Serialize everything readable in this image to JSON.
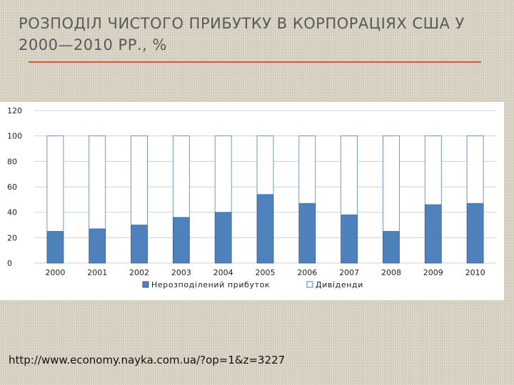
{
  "slide": {
    "title": "РОЗПОДІЛ ЧИСТОГО ПРИБУТКУ В КОРПОРАЦІЯХ США У 2000—2010 РР., %",
    "source": "http://www.economy.nayka.com.ua/?op=1&z=3227"
  },
  "colors": {
    "retained": "#4f81bd",
    "retained_stroke": "#385d8a",
    "dividends": "#ffffff",
    "dividends_stroke": "#4f81bd",
    "gridline": "#d0d0d0",
    "title_rule": "#d3573a"
  },
  "chart_data": {
    "type": "bar",
    "stacked": true,
    "categories": [
      "2000",
      "2001",
      "2002",
      "2003",
      "2004",
      "2005",
      "2006",
      "2007",
      "2008",
      "2009",
      "2010"
    ],
    "series": [
      {
        "name": "Нерозподілений прибуток",
        "values": [
          25,
          27,
          30,
          36,
          40,
          54,
          47,
          38,
          25,
          46,
          47
        ]
      },
      {
        "name": "Дивіденди",
        "values": [
          75,
          73,
          70,
          64,
          60,
          46,
          53,
          62,
          75,
          54,
          53
        ]
      }
    ],
    "yticks": [
      "0",
      "20",
      "40",
      "60",
      "80",
      "100",
      "120"
    ],
    "ylim": [
      0,
      120
    ],
    "grid": true,
    "legend_position": "bottom"
  }
}
